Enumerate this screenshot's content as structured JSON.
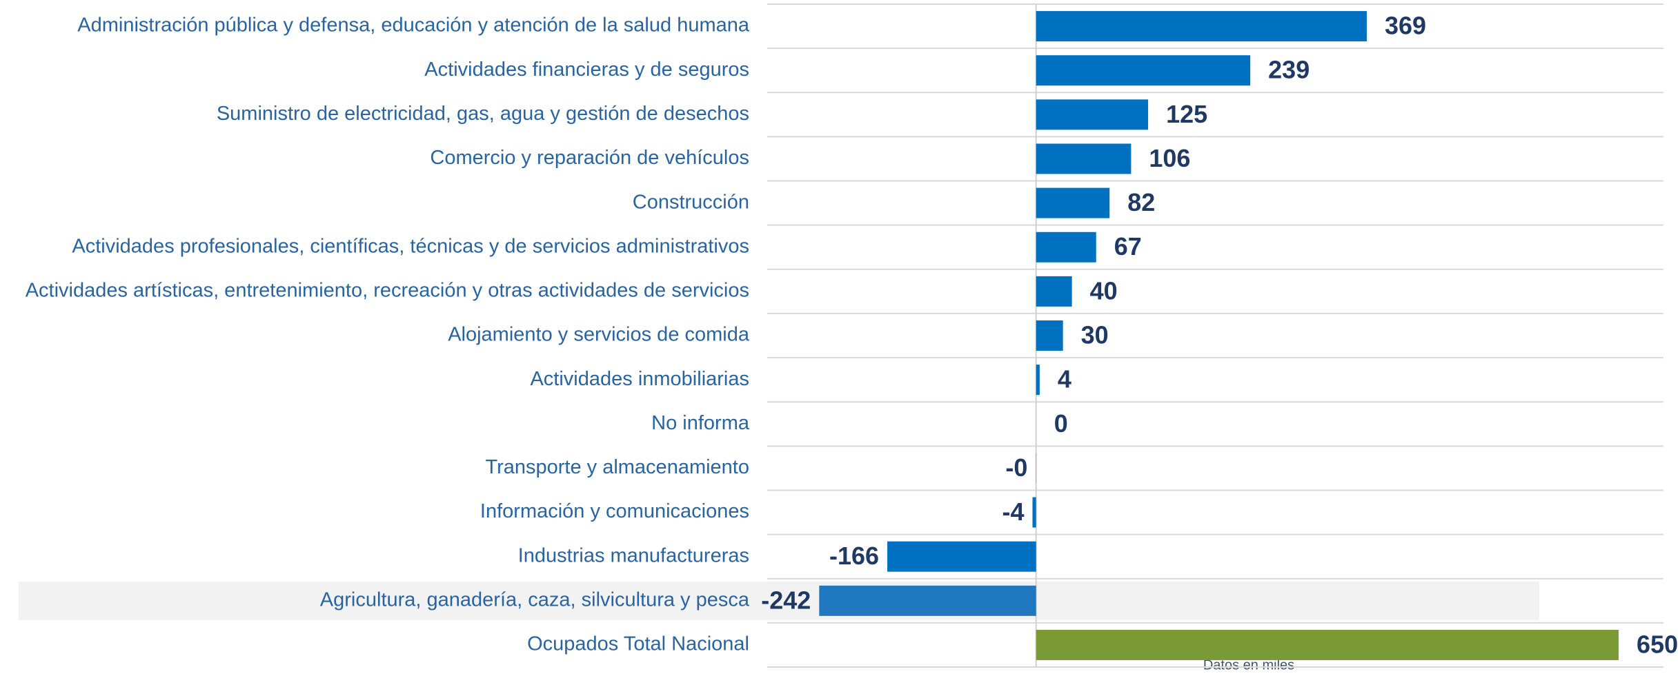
{
  "chart_data": {
    "type": "bar",
    "orientation": "horizontal",
    "categories": [
      "Administración pública y defensa, educación y atención de la salud humana",
      "Actividades financieras y de seguros",
      "Suministro de electricidad, gas, agua y gestión de desechos",
      "Comercio y reparación de vehículos",
      "Construcción",
      "Actividades profesionales, científicas, técnicas y de servicios administrativos",
      "Actividades artísticas, entretenimiento, recreación y otras actividades de servicios",
      "Alojamiento y servicios de comida",
      "Actividades inmobiliarias",
      "No informa",
      "Transporte y almacenamiento",
      "Información y comunicaciones",
      "Industrias manufactureras",
      "Agricultura, ganadería, caza, silvicultura y pesca",
      "Ocupados Total Nacional"
    ],
    "values": [
      369,
      239,
      125,
      106,
      82,
      67,
      40,
      30,
      4,
      0,
      -0.2,
      -4,
      -166,
      -242,
      650
    ],
    "value_labels": [
      "369",
      "239",
      "125",
      "106",
      "82",
      "67",
      "40",
      "30",
      "4",
      "0",
      "-0",
      "-4",
      "-166",
      "-242",
      "650"
    ],
    "colors": [
      "#0070c0",
      "#0070c0",
      "#0070c0",
      "#0070c0",
      "#0070c0",
      "#0070c0",
      "#0070c0",
      "#0070c0",
      "#0070c0",
      "#0070c0",
      "#0070c0",
      "#0070c0",
      "#0070c0",
      "#1f77bd",
      "#7a9a36"
    ],
    "highlight_index": 13,
    "xlim": [
      -300,
      700
    ],
    "note": "Datos en miles"
  }
}
